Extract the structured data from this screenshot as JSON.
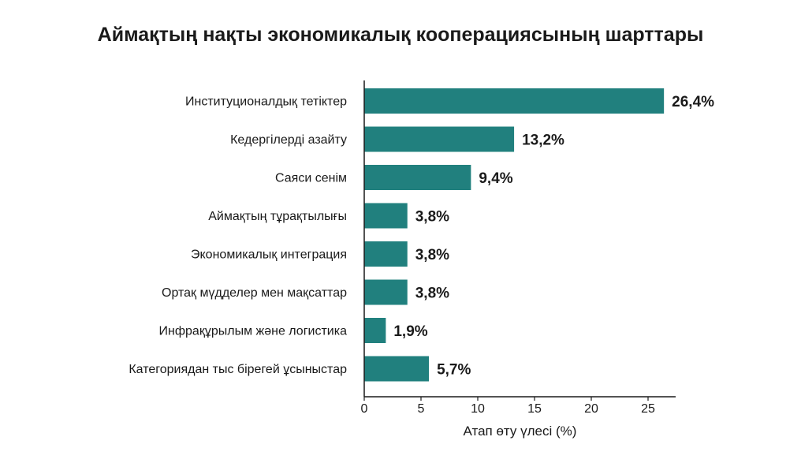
{
  "colors": {
    "bar": "#21807e",
    "axis": "#1a1a1a"
  },
  "chart_data": {
    "type": "bar",
    "orientation": "horizontal",
    "title": "Аймақтың нақты экономикалық кооперациясының шарттары",
    "xlabel": "Атап өту үлесі (%)",
    "ylabel": "",
    "xlim": [
      0,
      27.5
    ],
    "xticks": [
      0,
      5,
      10,
      15,
      20,
      25
    ],
    "grid": false,
    "categories": [
      "Институционалдық тетіктер",
      "Кедергілерді азайту",
      "Саяси сенім",
      "Аймақтың тұрақтылығы",
      "Экономикалық интеграция",
      "Ортақ мүдделер мен мақсаттар",
      "Инфрақұрылым және логистика",
      "Категориядан тыс бірегей ұсыныстар"
    ],
    "values": [
      26.4,
      13.2,
      9.4,
      3.8,
      3.8,
      3.8,
      1.9,
      5.7
    ],
    "value_labels": [
      "26,4%",
      "13,2%",
      "9,4%",
      "3,8%",
      "3,8%",
      "3,8%",
      "1,9%",
      "5,7%"
    ]
  }
}
